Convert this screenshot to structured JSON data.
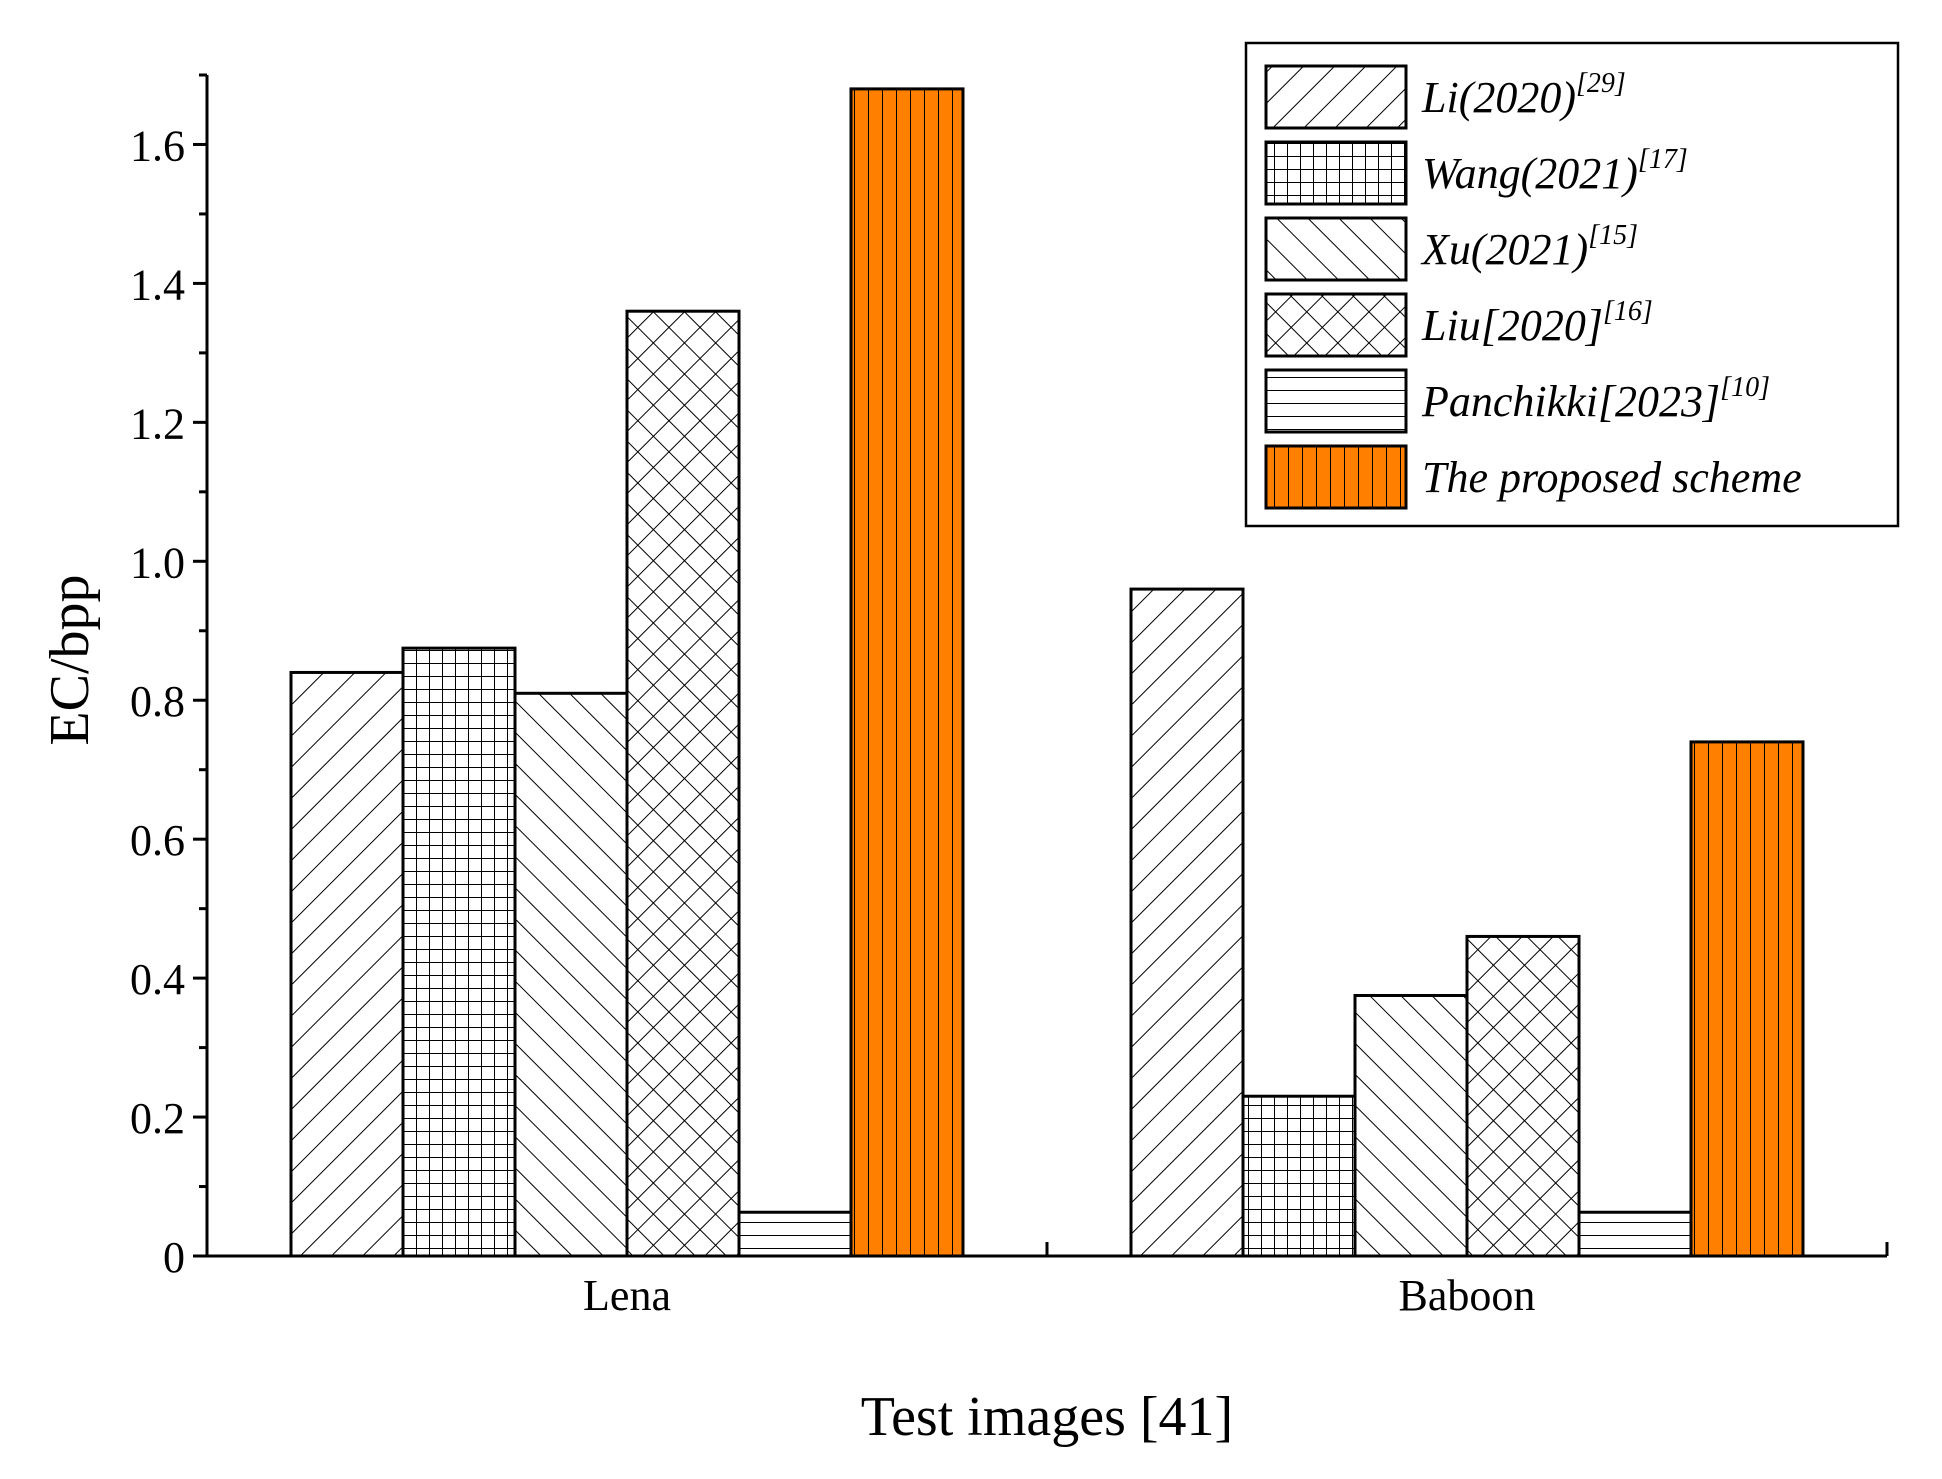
{
  "chart_data": {
    "type": "bar",
    "xlabel": "Test images [41]",
    "ylabel": "EC/bpp",
    "categories": [
      "Lena",
      "Baboon"
    ],
    "ylim": [
      0,
      1.7
    ],
    "y_ticks": [
      "0",
      "0.2",
      "0.4",
      "0.6",
      "0.8",
      "1.0",
      "1.2",
      "1.4",
      "1.6"
    ],
    "legend_position": "top-right",
    "series": [
      {
        "name": "Li(2020)",
        "ref": "[29]",
        "pattern": "diag-right",
        "values": [
          0.84,
          0.96
        ]
      },
      {
        "name": "Wang(2021)",
        "ref": "[17]",
        "pattern": "grid",
        "values": [
          0.875,
          0.23
        ]
      },
      {
        "name": "Xu(2021)",
        "ref": "[15]",
        "pattern": "diag-left",
        "values": [
          0.81,
          0.375
        ]
      },
      {
        "name": "Liu[2020]",
        "ref": "[16]",
        "pattern": "cross-hatch",
        "values": [
          1.36,
          0.46
        ]
      },
      {
        "name": "Panchikki[2023]",
        "ref": "[10]",
        "pattern": "horizontal",
        "values": [
          0.063,
          0.063
        ]
      },
      {
        "name": "The proposed scheme",
        "ref": "",
        "pattern": "vertical-orange",
        "values": [
          1.68,
          0.74
        ]
      }
    ],
    "colors": {
      "accent": "#ff8000",
      "line": "#000000",
      "background": "#ffffff"
    }
  }
}
